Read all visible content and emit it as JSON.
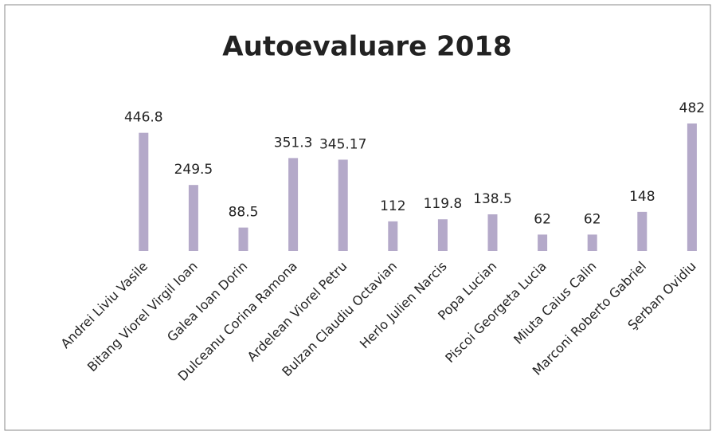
{
  "chart_data": {
    "type": "bar",
    "title": "Autoevaluare 2018",
    "categories": [
      "Andrei Liviu Vasile",
      "Bitang Viorel Virgil Ioan",
      "Galea Ioan Dorin",
      "Dulceanu Corina Ramona",
      "Ardelean Viorel Petru",
      "Bulzan Claudiu Octavian",
      "Herlo Julien Narcis",
      "Popa Lucian",
      "Piscoi Georgeta Lucia",
      "Miuta Caius Calin",
      "Marconi Roberto Gabriel",
      "Şerban Ovidiu"
    ],
    "values": [
      446.8,
      249.5,
      88.5,
      351.3,
      345.17,
      112,
      119.8,
      138.5,
      62,
      62,
      148,
      482
    ],
    "color": "#b4a9c9"
  }
}
